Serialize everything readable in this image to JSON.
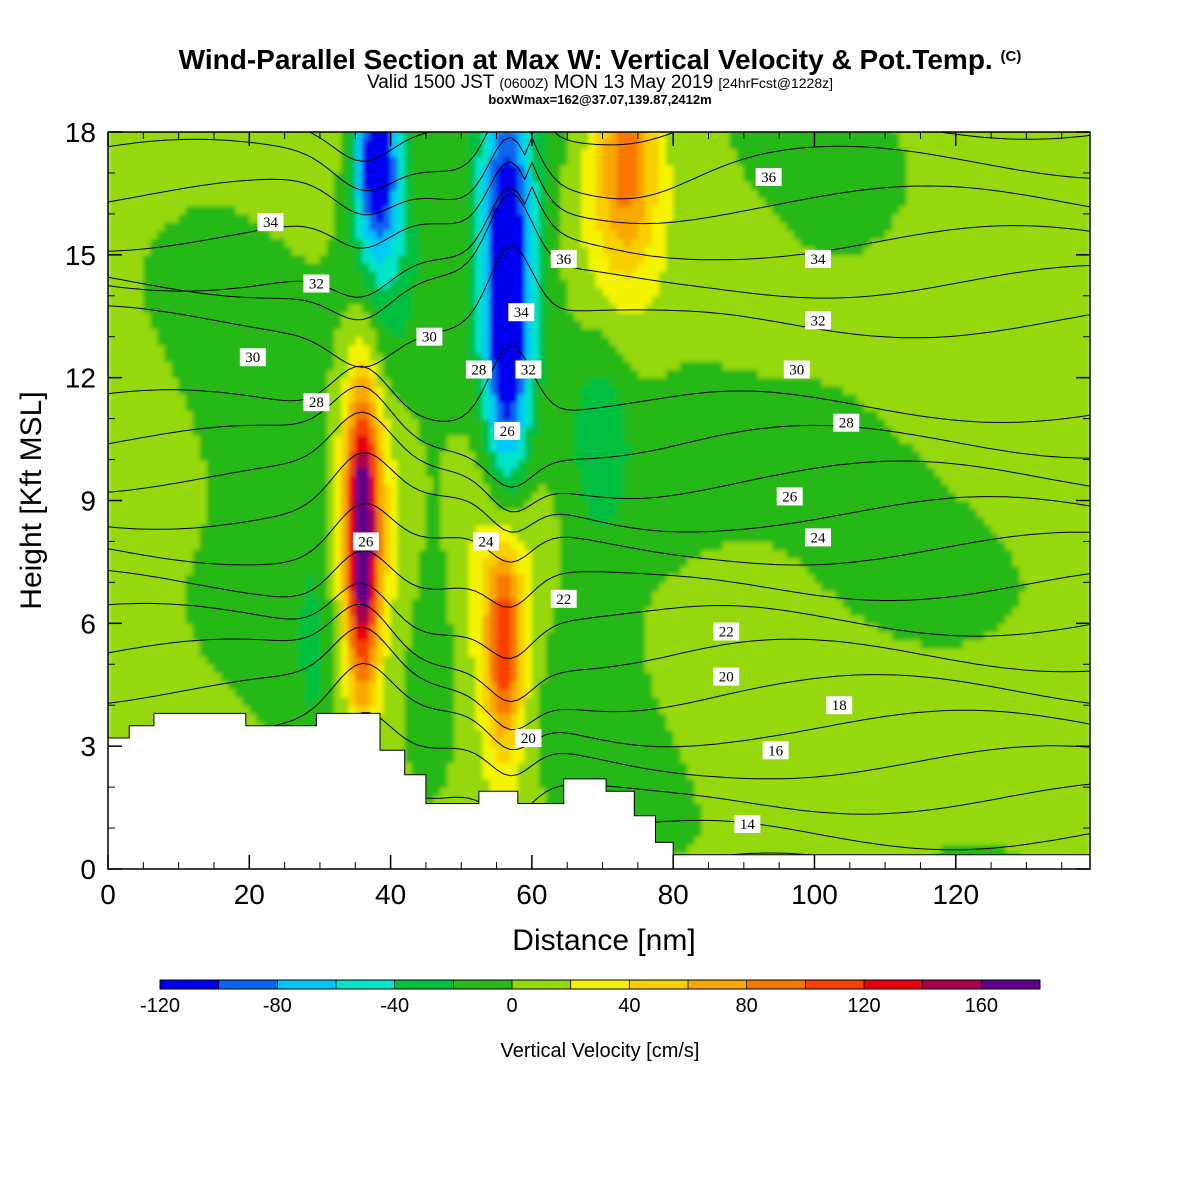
{
  "title_line1": "Wind-Parallel Section at Max W: Vertical Velocity & Pot.Temp.",
  "title_copyright": "(C)",
  "title_line2_main": "Valid 1500 JST",
  "title_line2_utc": "(0600Z)",
  "title_line2_date": "MON 13 May 2019",
  "title_line2_fcst": "[24hrFcst@1228z]",
  "title_line3": "boxWmax=162@37.07,139.87,2412m",
  "chart_data": {
    "type": "heatmap",
    "xlabel": "Distance [nm]",
    "ylabel": "Height [Kft MSL]",
    "xlim": [
      0,
      139
    ],
    "ylim": [
      0,
      18
    ],
    "x_ticks": [
      "0",
      "20",
      "40",
      "60",
      "80",
      "100",
      "120"
    ],
    "y_ticks": [
      "0",
      "3",
      "6",
      "9",
      "12",
      "15",
      "18"
    ],
    "colorbar": {
      "label": "Vertical Velocity [cm/s]",
      "levels": [
        -120,
        -100,
        -80,
        -60,
        -40,
        -20,
        0,
        20,
        40,
        60,
        80,
        100,
        120,
        140,
        160,
        180
      ],
      "tick_labels": [
        "-120",
        "-80",
        "-40",
        "0",
        "40",
        "80",
        "120",
        "160"
      ],
      "colors": [
        "#0000ee",
        "#0a66f0",
        "#00c8f8",
        "#00e4c8",
        "#00c040",
        "#28b818",
        "#94d808",
        "#f4f400",
        "#f8d000",
        "#f8a800",
        "#f87800",
        "#f84000",
        "#e80010",
        "#a8004c",
        "#600088"
      ]
    },
    "features": [
      {
        "name": "updraft",
        "x": 36,
        "y_range": [
          4.5,
          12.5
        ],
        "max_w": 162
      },
      {
        "name": "updraft",
        "x": 56,
        "y_range": [
          3.5,
          8.5
        ],
        "max_w": 80
      },
      {
        "name": "updraft",
        "x": 74,
        "y_range": [
          14.5,
          18
        ],
        "max_w": 60
      },
      {
        "name": "downdraft",
        "x": 38,
        "y_range": [
          14,
          18
        ],
        "min_w": -100
      },
      {
        "name": "downdraft",
        "x": 57,
        "y_range": [
          11,
          17.5
        ],
        "min_w": -100
      }
    ],
    "contour_labels": [
      {
        "text": "34",
        "x": 23,
        "y": 15.8
      },
      {
        "text": "32",
        "x": 29.5,
        "y": 14.3
      },
      {
        "text": "30",
        "x": 20.5,
        "y": 12.5
      },
      {
        "text": "28",
        "x": 29.5,
        "y": 11.4
      },
      {
        "text": "30",
        "x": 45.5,
        "y": 13.0
      },
      {
        "text": "28",
        "x": 52.5,
        "y": 12.2
      },
      {
        "text": "26",
        "x": 56.5,
        "y": 10.7
      },
      {
        "text": "34",
        "x": 58.5,
        "y": 13.6
      },
      {
        "text": "32",
        "x": 59.5,
        "y": 12.2
      },
      {
        "text": "36",
        "x": 64.5,
        "y": 14.9
      },
      {
        "text": "36",
        "x": 93.5,
        "y": 16.9
      },
      {
        "text": "34",
        "x": 100.5,
        "y": 14.9
      },
      {
        "text": "32",
        "x": 100.5,
        "y": 13.4
      },
      {
        "text": "30",
        "x": 97.5,
        "y": 12.2
      },
      {
        "text": "28",
        "x": 104.5,
        "y": 10.9
      },
      {
        "text": "26",
        "x": 96.5,
        "y": 9.1
      },
      {
        "text": "24",
        "x": 100.5,
        "y": 8.1
      },
      {
        "text": "26",
        "x": 36.5,
        "y": 8.0
      },
      {
        "text": "24",
        "x": 53.5,
        "y": 8.0
      },
      {
        "text": "22",
        "x": 64.5,
        "y": 6.6
      },
      {
        "text": "22",
        "x": 87.5,
        "y": 5.8
      },
      {
        "text": "20",
        "x": 87.5,
        "y": 4.7
      },
      {
        "text": "20",
        "x": 59.5,
        "y": 3.2
      },
      {
        "text": "18",
        "x": 103.5,
        "y": 4.0
      },
      {
        "text": "16",
        "x": 94.5,
        "y": 2.9
      },
      {
        "text": "14",
        "x": 90.5,
        "y": 1.1
      }
    ]
  }
}
